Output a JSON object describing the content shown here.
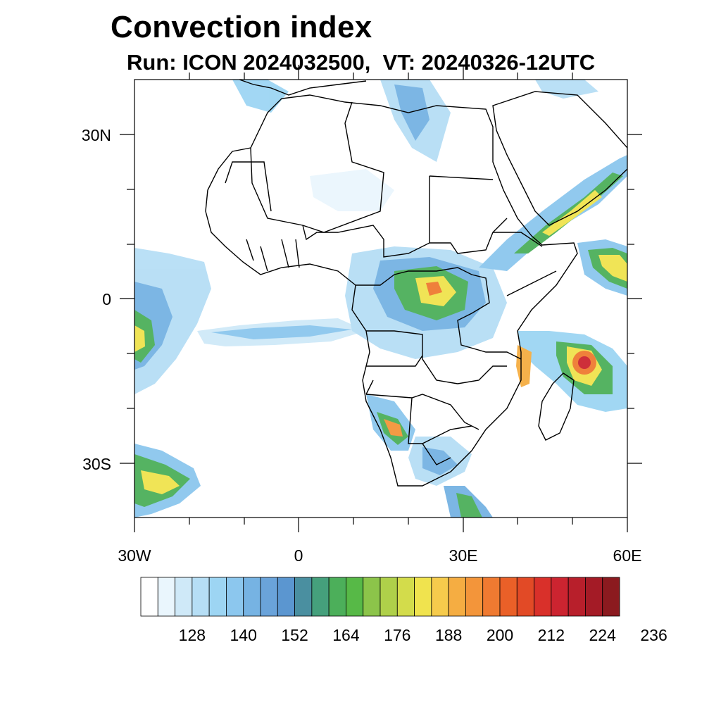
{
  "title": "Convection index",
  "subtitle": "Run: ICON 2024032500,  VT: 20240326-12UTC",
  "map": {
    "region": "Africa",
    "lon_range": [
      -30,
      60
    ],
    "lat_range": [
      -40,
      40
    ],
    "lat_labels": [
      "30N",
      "0",
      "30S"
    ],
    "lon_labels": [
      "30W",
      "0",
      "30E",
      "60E"
    ]
  },
  "colorbar": {
    "labels": [
      "128",
      "140",
      "152",
      "164",
      "176",
      "188",
      "200",
      "212",
      "224",
      "236"
    ],
    "colors": [
      "#ffffff",
      "#eaf6fd",
      "#cfe9f8",
      "#b6def5",
      "#9dd5f3",
      "#8cc7ee",
      "#76b3e3",
      "#6aa3da",
      "#5b96d0",
      "#4a8fa0",
      "#45a07c",
      "#4caf5a",
      "#57b947",
      "#8cc44a",
      "#afd04a",
      "#d3dc4b",
      "#f0e34e",
      "#f6cb4c",
      "#f5ad42",
      "#f3953a",
      "#ef7a31",
      "#ea6028",
      "#e24a26",
      "#d9302a",
      "#cc2430",
      "#b81f2b",
      "#a41b26",
      "#8b1a1f"
    ]
  },
  "colors": {
    "land_outline": "#000000",
    "frame": "#000000"
  }
}
